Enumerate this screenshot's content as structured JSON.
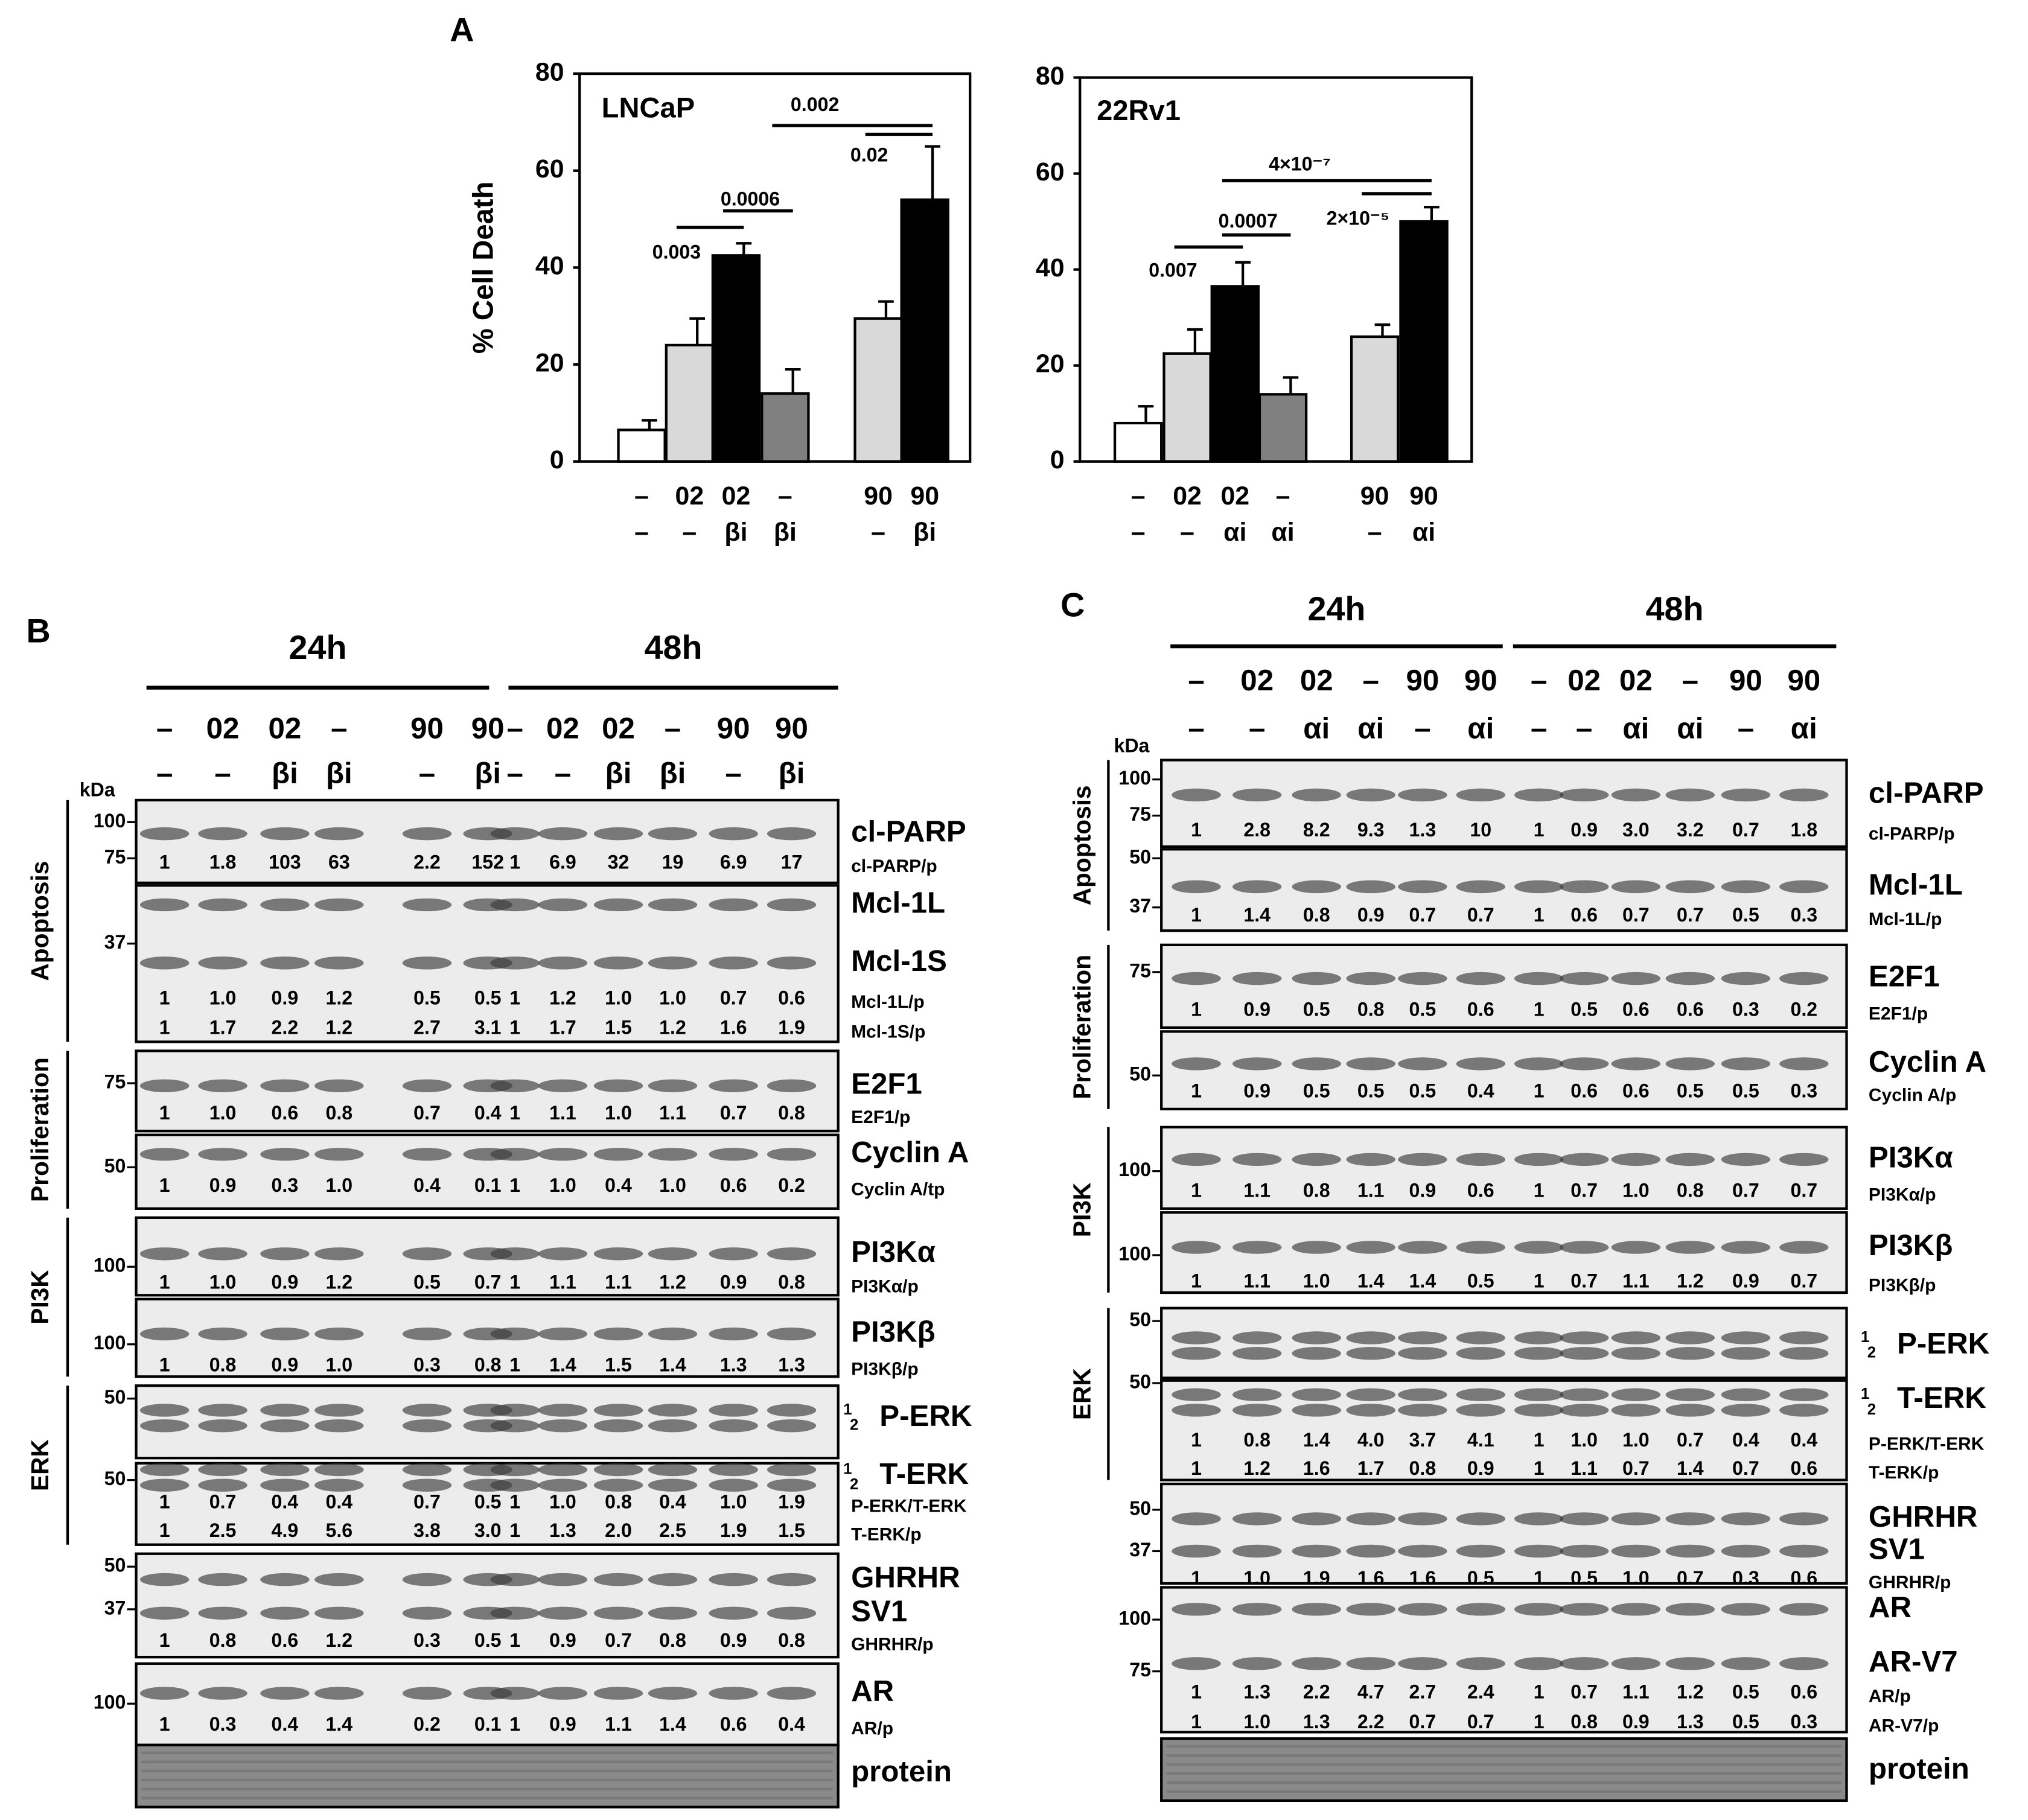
{
  "panel_labels": [
    "A",
    "B",
    "C"
  ],
  "chart_data": [
    {
      "type": "bar",
      "title": "LNCaP",
      "y_label": "% Cell Death",
      "ylim": [
        0,
        80
      ],
      "yticks": [
        0,
        20,
        40,
        60,
        80
      ],
      "categories": [
        [
          "–",
          "–"
        ],
        [
          "02",
          "–"
        ],
        [
          "02",
          "βi"
        ],
        [
          "–",
          "βi"
        ],
        [
          "90",
          "–"
        ],
        [
          "90",
          "βi"
        ]
      ],
      "values": [
        6.5,
        24,
        42.5,
        14,
        29.5,
        54
      ],
      "errors": [
        2,
        5.5,
        2.5,
        5,
        3.5,
        11
      ],
      "colors": [
        "#ffffff",
        "#d9d9d9",
        "#000000",
        "#808080",
        "#d9d9d9",
        "#000000"
      ],
      "annotations": [
        {
          "text": "0.003",
          "between": [
            1,
            2
          ],
          "y": 48.3
        },
        {
          "text": "0.0006",
          "between": [
            2,
            3
          ],
          "y": 51.7
        },
        {
          "text": "0.002",
          "between": [
            3,
            5
          ],
          "y": 69.3
        },
        {
          "text": "0.02",
          "between": [
            4,
            5
          ],
          "y": 67.5
        }
      ]
    },
    {
      "type": "bar",
      "title": "22Rv1",
      "ylim": [
        0,
        80
      ],
      "yticks": [
        0,
        20,
        40,
        60,
        80
      ],
      "categories": [
        [
          "–",
          "–"
        ],
        [
          "02",
          "–"
        ],
        [
          "02",
          "αi"
        ],
        [
          "–",
          "αi"
        ],
        [
          "90",
          "–"
        ],
        [
          "90",
          "αi"
        ]
      ],
      "values": [
        8,
        22.5,
        36.5,
        14,
        26,
        50
      ],
      "errors": [
        3.5,
        5,
        5,
        3.5,
        2.5,
        3
      ],
      "colors": [
        "#ffffff",
        "#d9d9d9",
        "#000000",
        "#808080",
        "#d9d9d9",
        "#000000"
      ],
      "annotations": [
        {
          "text": "0.007",
          "between": [
            1,
            2
          ],
          "y": 44.7
        },
        {
          "text": "0.0007",
          "between": [
            2,
            3
          ],
          "y": 47.2
        },
        {
          "text": "4×10⁻⁷",
          "between": [
            2,
            5
          ],
          "y": 58.5
        },
        {
          "text": "2×10⁻⁵",
          "between": [
            4,
            5
          ],
          "y": 55.8
        }
      ]
    }
  ],
  "blot_b": {
    "times": [
      "24h",
      "48h"
    ],
    "kda": "kDa",
    "lanes": [
      [
        "–",
        "–"
      ],
      [
        "02",
        "–"
      ],
      [
        "02",
        "βi"
      ],
      [
        "–",
        "βi"
      ],
      [
        "90",
        "–"
      ],
      [
        "90",
        "βi"
      ],
      [
        "–",
        "–"
      ],
      [
        "02",
        "–"
      ],
      [
        "02",
        "βi"
      ],
      [
        "–",
        "βi"
      ],
      [
        "90",
        "–"
      ],
      [
        "90",
        "βi"
      ]
    ],
    "sections": [
      {
        "name": "Apoptosis",
        "blots": [
          {
            "names": [
              "cl-PARP"
            ],
            "markers": [
              100,
              75
            ],
            "rows": [
              {
                "label": "cl-PARP/p",
                "values": [
                  "1",
                  "1.8",
                  "103",
                  "63",
                  "2.2",
                  "152",
                  "1",
                  "6.9",
                  "32",
                  "19",
                  "6.9",
                  "17"
                ]
              }
            ]
          },
          {
            "names": [
              "Mcl-1L",
              "Mcl-1S"
            ],
            "markers": [
              37
            ],
            "rows": [
              {
                "label": "Mcl-1L/p",
                "values": [
                  "1",
                  "1.0",
                  "0.9",
                  "1.2",
                  "0.5",
                  "0.5",
                  "1",
                  "1.2",
                  "1.0",
                  "1.0",
                  "0.7",
                  "0.6"
                ]
              },
              {
                "label": "Mcl-1S/p",
                "values": [
                  "1",
                  "1.7",
                  "2.2",
                  "1.2",
                  "2.7",
                  "3.1",
                  "1",
                  "1.7",
                  "1.5",
                  "1.2",
                  "1.6",
                  "1.9"
                ]
              }
            ]
          }
        ]
      },
      {
        "name": "Proliferation",
        "blots": [
          {
            "names": [
              "E2F1"
            ],
            "markers": [
              75
            ],
            "rows": [
              {
                "label": "E2F1/p",
                "values": [
                  "1",
                  "1.0",
                  "0.6",
                  "0.8",
                  "0.7",
                  "0.4",
                  "1",
                  "1.1",
                  "1.0",
                  "1.1",
                  "0.7",
                  "0.8"
                ]
              }
            ]
          },
          {
            "names": [
              "Cyclin A"
            ],
            "markers": [
              50
            ],
            "rows": [
              {
                "label": "Cyclin A/tp",
                "values": [
                  "1",
                  "0.9",
                  "0.3",
                  "1.0",
                  "0.4",
                  "0.1",
                  "1",
                  "1.0",
                  "0.4",
                  "1.0",
                  "0.6",
                  "0.2"
                ]
              }
            ]
          }
        ]
      },
      {
        "name": "PI3K",
        "blots": [
          {
            "names": [
              "PI3Kα"
            ],
            "markers": [
              100
            ],
            "rows": [
              {
                "label": "PI3Kα/p",
                "values": [
                  "1",
                  "1.0",
                  "0.9",
                  "1.2",
                  "0.5",
                  "0.7",
                  "1",
                  "1.1",
                  "1.1",
                  "1.2",
                  "0.9",
                  "0.8"
                ]
              }
            ]
          },
          {
            "names": [
              "PI3Kβ"
            ],
            "markers": [
              100
            ],
            "rows": [
              {
                "label": "PI3Kβ/p",
                "values": [
                  "1",
                  "0.8",
                  "0.9",
                  "1.0",
                  "0.3",
                  "0.8",
                  "1",
                  "1.4",
                  "1.5",
                  "1.4",
                  "1.3",
                  "1.3"
                ]
              }
            ]
          }
        ]
      },
      {
        "name": "ERK",
        "blots": [
          {
            "names": [
              "P-ERK"
            ],
            "markers": [
              50
            ],
            "bands": [
              "1",
              "2"
            ],
            "rows": []
          },
          {
            "names": [
              "T-ERK"
            ],
            "markers": [
              50
            ],
            "bands": [
              "1",
              "2"
            ],
            "rows": [
              {
                "label": "P-ERK/T-ERK",
                "values": [
                  "1",
                  "0.7",
                  "0.4",
                  "0.4",
                  "0.7",
                  "0.5",
                  "1",
                  "1.0",
                  "0.8",
                  "0.4",
                  "1.0",
                  "1.9"
                ]
              },
              {
                "label": "T-ERK/p",
                "values": [
                  "1",
                  "2.5",
                  "4.9",
                  "5.6",
                  "3.8",
                  "3.0",
                  "1",
                  "1.3",
                  "2.0",
                  "2.5",
                  "1.9",
                  "1.5"
                ]
              }
            ]
          }
        ]
      },
      {
        "blots": [
          {
            "names": [
              "GHRHR",
              "SV1"
            ],
            "markers": [
              50,
              37
            ],
            "rows": [
              {
                "label": "GHRHR/p",
                "values": [
                  "1",
                  "0.8",
                  "0.6",
                  "1.2",
                  "0.3",
                  "0.5",
                  "1",
                  "0.9",
                  "0.7",
                  "0.8",
                  "0.9",
                  "0.8"
                ]
              }
            ]
          },
          {
            "names": [
              "AR"
            ],
            "markers": [
              100
            ],
            "rows": [
              {
                "label": "AR/p",
                "values": [
                  "1",
                  "0.3",
                  "0.4",
                  "1.4",
                  "0.2",
                  "0.1",
                  "1",
                  "0.9",
                  "1.1",
                  "1.4",
                  "0.6",
                  "0.4"
                ]
              }
            ]
          },
          {
            "names": [
              "protein"
            ],
            "markers": [],
            "rows": []
          }
        ]
      }
    ]
  },
  "blot_c": {
    "times": [
      "24h",
      "48h"
    ],
    "kda": "kDa",
    "lanes": [
      [
        "–",
        "–"
      ],
      [
        "02",
        "–"
      ],
      [
        "02",
        "αi"
      ],
      [
        "–",
        "αi"
      ],
      [
        "90",
        "–"
      ],
      [
        "90",
        "αi"
      ],
      [
        "–",
        "–"
      ],
      [
        "02",
        "–"
      ],
      [
        "02",
        "αi"
      ],
      [
        "–",
        "αi"
      ],
      [
        "90",
        "–"
      ],
      [
        "90",
        "αi"
      ]
    ],
    "sections": [
      {
        "name": "Apoptosis",
        "blots": [
          {
            "names": [
              "cl-PARP"
            ],
            "markers": [
              100,
              75
            ],
            "rows": [
              {
                "label": "cl-PARP/p",
                "values": [
                  "1",
                  "2.8",
                  "8.2",
                  "9.3",
                  "1.3",
                  "10",
                  "1",
                  "0.9",
                  "3.0",
                  "3.2",
                  "0.7",
                  "1.8"
                ]
              }
            ]
          },
          {
            "names": [
              "Mcl-1L"
            ],
            "markers": [
              50,
              37
            ],
            "rows": [
              {
                "label": "Mcl-1L/p",
                "values": [
                  "1",
                  "1.4",
                  "0.8",
                  "0.9",
                  "0.7",
                  "0.7",
                  "1",
                  "0.6",
                  "0.7",
                  "0.7",
                  "0.5",
                  "0.3"
                ]
              }
            ]
          }
        ]
      },
      {
        "name": "Proliferation",
        "blots": [
          {
            "names": [
              "E2F1"
            ],
            "markers": [
              75
            ],
            "rows": [
              {
                "label": "E2F1/p",
                "values": [
                  "1",
                  "0.9",
                  "0.5",
                  "0.8",
                  "0.5",
                  "0.6",
                  "1",
                  "0.5",
                  "0.6",
                  "0.6",
                  "0.3",
                  "0.2"
                ]
              }
            ]
          },
          {
            "names": [
              "Cyclin A"
            ],
            "markers": [
              50
            ],
            "rows": [
              {
                "label": "Cyclin A/p",
                "values": [
                  "1",
                  "0.9",
                  "0.5",
                  "0.5",
                  "0.5",
                  "0.4",
                  "1",
                  "0.6",
                  "0.6",
                  "0.5",
                  "0.5",
                  "0.3"
                ]
              }
            ]
          }
        ]
      },
      {
        "name": "PI3K",
        "blots": [
          {
            "names": [
              "PI3Kα"
            ],
            "markers": [
              100
            ],
            "rows": [
              {
                "label": "PI3Kα/p",
                "values": [
                  "1",
                  "1.1",
                  "0.8",
                  "1.1",
                  "0.9",
                  "0.6",
                  "1",
                  "0.7",
                  "1.0",
                  "0.8",
                  "0.7",
                  "0.7"
                ]
              }
            ]
          },
          {
            "names": [
              "PI3Kβ"
            ],
            "markers": [
              100
            ],
            "rows": [
              {
                "label": "PI3Kβ/p",
                "values": [
                  "1",
                  "1.1",
                  "1.0",
                  "1.4",
                  "1.4",
                  "0.5",
                  "1",
                  "0.7",
                  "1.1",
                  "1.2",
                  "0.9",
                  "0.7"
                ]
              }
            ]
          }
        ]
      },
      {
        "name": "ERK",
        "blots": [
          {
            "names": [
              "P-ERK"
            ],
            "markers": [
              50
            ],
            "bands": [
              "1",
              "2"
            ],
            "rows": []
          },
          {
            "names": [
              "T-ERK"
            ],
            "markers": [
              50
            ],
            "bands": [
              "1",
              "2"
            ],
            "rows": [
              {
                "label": "P-ERK/T-ERK",
                "values": [
                  "1",
                  "0.8",
                  "1.4",
                  "4.0",
                  "3.7",
                  "4.1",
                  "1",
                  "1.0",
                  "1.0",
                  "0.7",
                  "0.4",
                  "0.4"
                ]
              },
              {
                "label": "T-ERK/p",
                "values": [
                  "1",
                  "1.2",
                  "1.6",
                  "1.7",
                  "0.8",
                  "0.9",
                  "1",
                  "1.1",
                  "0.7",
                  "1.4",
                  "0.7",
                  "0.6"
                ]
              }
            ]
          }
        ]
      },
      {
        "blots": [
          {
            "names": [
              "GHRHR",
              "SV1"
            ],
            "markers": [
              50,
              37
            ],
            "rows": [
              {
                "label": "GHRHR/p",
                "values": [
                  "1",
                  "1.0",
                  "1.9",
                  "1.6",
                  "1.6",
                  "0.5",
                  "1",
                  "0.5",
                  "1.0",
                  "0.7",
                  "0.3",
                  "0.6"
                ]
              }
            ]
          },
          {
            "names": [
              "AR",
              "AR-V7"
            ],
            "markers": [
              100,
              75
            ],
            "rows": [
              {
                "label": "AR/p",
                "values": [
                  "1",
                  "1.3",
                  "2.2",
                  "4.7",
                  "2.7",
                  "2.4",
                  "1",
                  "0.7",
                  "1.1",
                  "1.2",
                  "0.5",
                  "0.6"
                ]
              },
              {
                "label": "AR-V7/p",
                "values": [
                  "1",
                  "1.0",
                  "1.3",
                  "2.2",
                  "0.7",
                  "0.7",
                  "1",
                  "0.8",
                  "0.9",
                  "1.3",
                  "0.5",
                  "0.3"
                ]
              }
            ]
          },
          {
            "names": [
              "protein"
            ],
            "markers": [],
            "rows": []
          }
        ]
      }
    ]
  }
}
